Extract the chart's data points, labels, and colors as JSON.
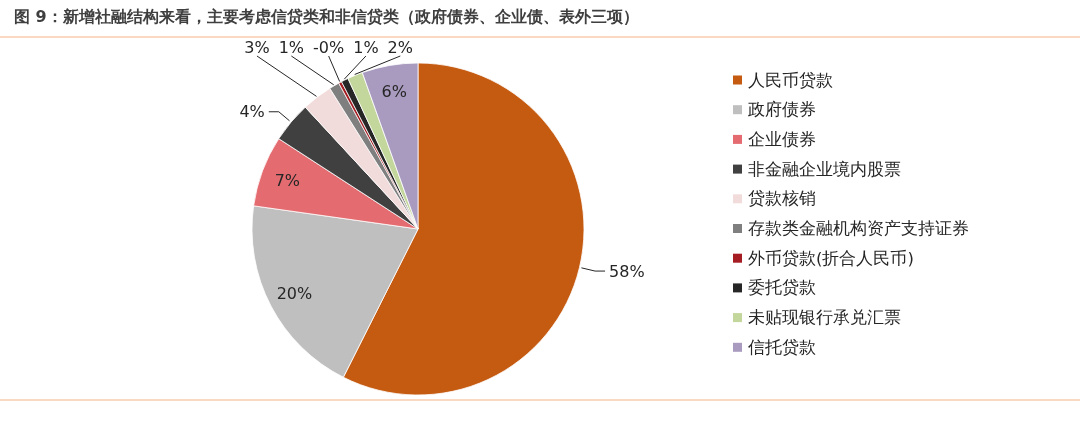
{
  "chart_data": {
    "type": "pie",
    "title": "图 9：新增社融结构来看，主要考虑信贷类和非信贷类（政府债券、企业债、表外三项）",
    "categories": [
      "人民币贷款",
      "政府债券",
      "企业债券",
      "非金融企业境内股票",
      "贷款核销",
      "存款类金融机构资产支持证券",
      "外币贷款(折合人民币)",
      "委托贷款",
      "未贴现银行承兑汇票",
      "信托贷款"
    ],
    "values": [
      58,
      20,
      7,
      4,
      3,
      1,
      0.3,
      0.7,
      1.5,
      5.5
    ],
    "colors": [
      "#c55a11",
      "#bfbfbf",
      "#e46c70",
      "#404040",
      "#f2dcdb",
      "#7f7f7f",
      "#a51c22",
      "#262626",
      "#c3d69b",
      "#a99bc0"
    ],
    "value_labels": [
      "58%",
      "20%",
      "7%",
      "4%",
      "3%",
      "1%",
      "-0%",
      "1%",
      "2%",
      "6%"
    ],
    "legend": "right"
  }
}
